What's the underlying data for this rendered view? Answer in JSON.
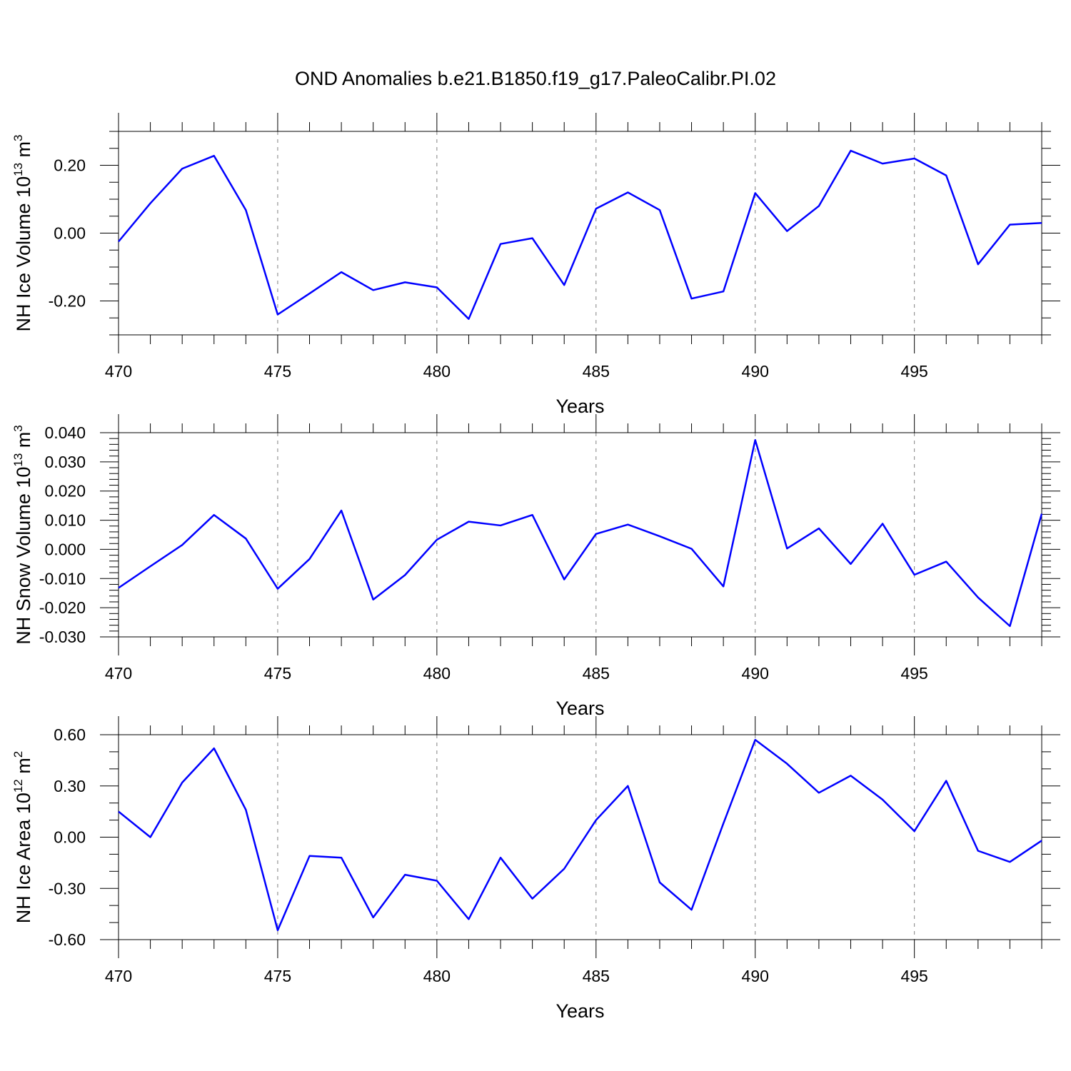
{
  "title": "OND Anomalies b.e21.B1850.f19_g17.PaleoCalibr.PI.02",
  "line_color": "#0000FF",
  "chart_data": [
    {
      "type": "line",
      "xlabel": "Years",
      "ylabel": "NH Ice Volume 10",
      "ylabel_exp": "13",
      "ylabel_unit": " m",
      "ylabel_unit_exp": "3",
      "xlim": [
        470,
        499
      ],
      "ylim": [
        -0.3,
        0.3
      ],
      "xticks": [
        470,
        475,
        480,
        485,
        490,
        495
      ],
      "xtick_labels": [
        "470",
        "475",
        "480",
        "485",
        "490",
        "495"
      ],
      "yticks": [
        -0.2,
        0.0,
        0.2
      ],
      "ytick_labels": [
        "-0.20",
        "0.00",
        "0.20"
      ],
      "yminor_step": 0.05,
      "grid_x": [
        475,
        480,
        485,
        490,
        495
      ],
      "x": [
        470,
        471,
        472,
        473,
        474,
        475,
        476,
        477,
        478,
        479,
        480,
        481,
        482,
        483,
        484,
        485,
        486,
        487,
        488,
        489,
        490,
        491,
        492,
        493,
        494,
        495,
        496,
        497,
        498,
        499
      ],
      "y": [
        -0.025,
        0.088,
        0.19,
        0.228,
        0.068,
        -0.24,
        -0.178,
        -0.115,
        -0.168,
        -0.145,
        -0.16,
        -0.253,
        -0.032,
        -0.015,
        -0.153,
        0.072,
        0.12,
        0.068,
        -0.193,
        -0.172,
        0.118,
        0.006,
        0.08,
        0.243,
        0.205,
        0.22,
        0.17,
        -0.092,
        0.025,
        0.03
      ]
    },
    {
      "type": "line",
      "xlabel": "Years",
      "ylabel": "NH Snow Volume 10",
      "ylabel_exp": "13",
      "ylabel_unit": " m",
      "ylabel_unit_exp": "3",
      "xlim": [
        470,
        499
      ],
      "ylim": [
        -0.03,
        0.04
      ],
      "xticks": [
        470,
        475,
        480,
        485,
        490,
        495
      ],
      "xtick_labels": [
        "470",
        "475",
        "480",
        "485",
        "490",
        "495"
      ],
      "yticks": [
        -0.03,
        -0.02,
        -0.01,
        0.0,
        0.01,
        0.02,
        0.03,
        0.04
      ],
      "ytick_labels": [
        "-0.030",
        "-0.020",
        "-0.010",
        "0.000",
        "0.010",
        "0.020",
        "0.030",
        "0.040"
      ],
      "yminor_step": 0.002,
      "grid_x": [
        475,
        480,
        485,
        490,
        495
      ],
      "x": [
        470,
        471,
        472,
        473,
        474,
        475,
        476,
        477,
        478,
        479,
        480,
        481,
        482,
        483,
        484,
        485,
        486,
        487,
        488,
        489,
        490,
        491,
        492,
        493,
        494,
        495,
        496,
        497,
        498,
        499
      ],
      "y": [
        -0.0132,
        -0.0058,
        0.0015,
        0.0118,
        0.0037,
        -0.0135,
        -0.0033,
        0.0133,
        -0.0172,
        -0.0088,
        0.0033,
        0.0095,
        0.0082,
        0.0118,
        -0.0103,
        0.0053,
        0.0085,
        0.0045,
        0.0002,
        -0.0127,
        0.0375,
        0.0003,
        0.0072,
        -0.005,
        0.0088,
        -0.0087,
        -0.0042,
        -0.0165,
        -0.0263,
        0.0122
      ]
    },
    {
      "type": "line",
      "xlabel": "Years",
      "ylabel": "NH Ice Area 10",
      "ylabel_exp": "12",
      "ylabel_unit": " m",
      "ylabel_unit_exp": "2",
      "xlim": [
        470,
        499
      ],
      "ylim": [
        -0.6,
        0.6
      ],
      "xticks": [
        470,
        475,
        480,
        485,
        490,
        495
      ],
      "xtick_labels": [
        "470",
        "475",
        "480",
        "485",
        "490",
        "495"
      ],
      "yticks": [
        -0.6,
        -0.3,
        0.0,
        0.3,
        0.6
      ],
      "ytick_labels": [
        "-0.60",
        "-0.30",
        "0.00",
        "0.30",
        "0.60"
      ],
      "yminor_step": 0.1,
      "grid_x": [
        475,
        480,
        485,
        490,
        495
      ],
      "x": [
        470,
        471,
        472,
        473,
        474,
        475,
        476,
        477,
        478,
        479,
        480,
        481,
        482,
        483,
        484,
        485,
        486,
        487,
        488,
        489,
        490,
        491,
        492,
        493,
        494,
        495,
        496,
        497,
        498,
        499
      ],
      "y": [
        0.15,
        0.0,
        0.32,
        0.52,
        0.16,
        -0.545,
        -0.11,
        -0.12,
        -0.47,
        -0.22,
        -0.255,
        -0.48,
        -0.12,
        -0.36,
        -0.185,
        0.1,
        0.3,
        -0.265,
        -0.425,
        0.08,
        0.57,
        0.43,
        0.26,
        0.36,
        0.22,
        0.035,
        0.33,
        -0.08,
        -0.145,
        -0.02
      ]
    }
  ]
}
